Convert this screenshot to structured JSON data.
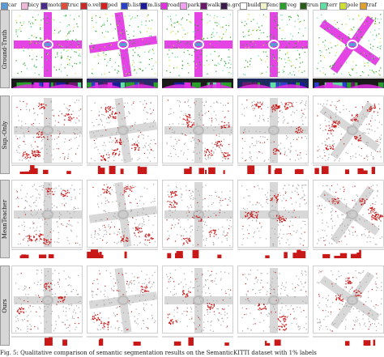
{
  "legend": [
    {
      "label": "car",
      "color": "#5a9bd5"
    },
    {
      "label": "bicy",
      "color": "#f0b8d8"
    },
    {
      "label": "moto",
      "color": "#4a2a8a"
    },
    {
      "label": "truc",
      "color": "#e04e3a"
    },
    {
      "label": "o.veh",
      "color": "#c82a2a"
    },
    {
      "label": "ped",
      "color": "#d62020"
    },
    {
      "label": "b.list",
      "color": "#2a40c8"
    },
    {
      "label": "m.list",
      "color": "#1a1a9a"
    },
    {
      "label": "road",
      "color": "#e030e0"
    },
    {
      "label": "park",
      "color": "#f2a0f2"
    },
    {
      "label": "walk",
      "color": "#6a1a6a"
    },
    {
      "label": "o.gro",
      "color": "#3a1a4a"
    },
    {
      "label": "build",
      "color": "#ffffff"
    },
    {
      "label": "fenc",
      "color": "#f2f2c8"
    },
    {
      "label": "veg",
      "color": "#2aa02a"
    },
    {
      "label": "trun",
      "color": "#2a5a1a"
    },
    {
      "label": "terr",
      "color": "#60e0a0"
    },
    {
      "label": "pole",
      "color": "#d0e030"
    },
    {
      "label": "traf",
      "color": "#e0a030"
    }
  ],
  "rows": [
    {
      "label": "Ground-Truth"
    },
    {
      "label": "Sup.-Only"
    },
    {
      "label": "MeanTeacher"
    },
    {
      "label": "Ours"
    }
  ],
  "caption": "Fig. 5: Qualitative comparison of semantic segmentation results on the SemanticKITTI dataset with 1% labels"
}
